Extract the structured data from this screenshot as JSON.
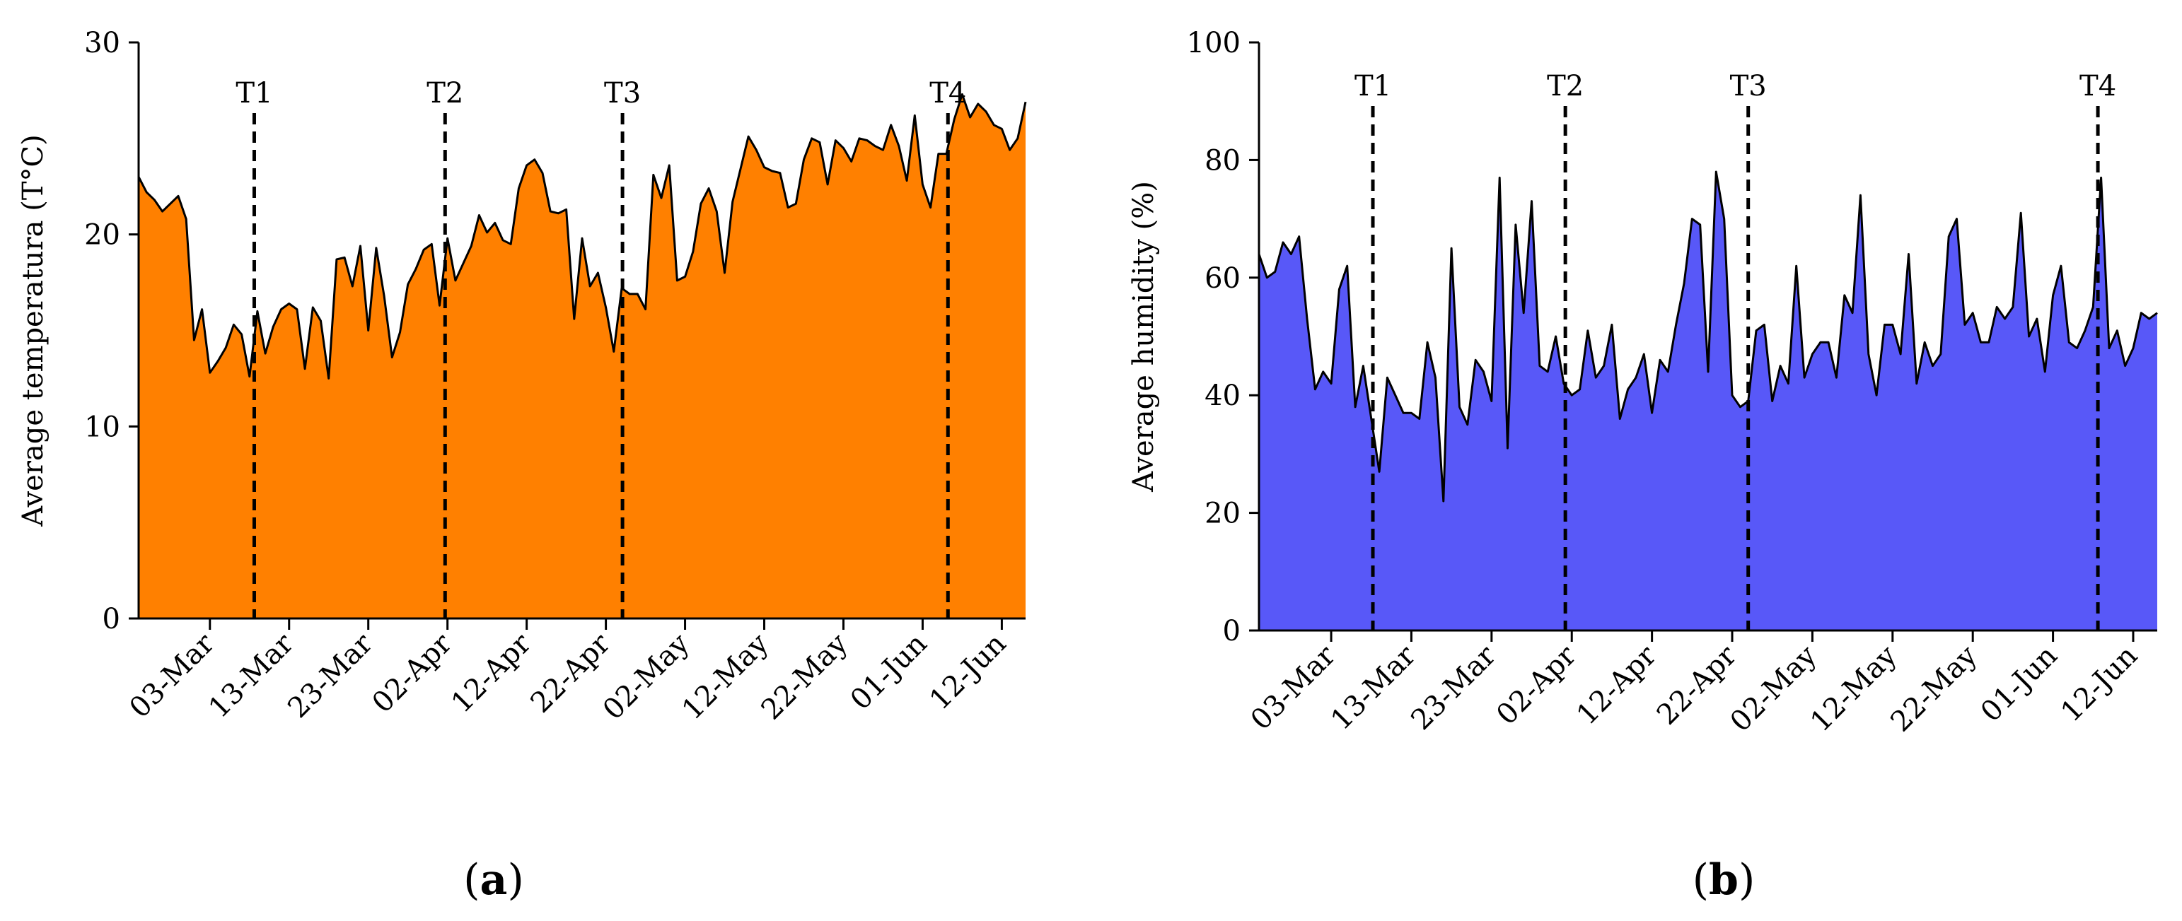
{
  "chart_data": [
    {
      "type": "area",
      "panel_label": "(a)",
      "panel_letter": "a",
      "title": "",
      "xlabel": "",
      "ylabel": "Average temperatura (T°C)",
      "ylim": [
        0,
        30
      ],
      "yticks": [
        0,
        10,
        20,
        30
      ],
      "xlim": [
        0,
        112
      ],
      "xticks": [
        {
          "label": "03-Mar",
          "day": 9
        },
        {
          "label": "13-Mar",
          "day": 19
        },
        {
          "label": "23-Mar",
          "day": 29
        },
        {
          "label": "02-Apr",
          "day": 39
        },
        {
          "label": "12-Apr",
          "day": 49
        },
        {
          "label": "22-Apr",
          "day": 59
        },
        {
          "label": "02-May",
          "day": 69
        },
        {
          "label": "12-May",
          "day": 79
        },
        {
          "label": "22-May",
          "day": 89
        },
        {
          "label": "01-Jun",
          "day": 99
        },
        {
          "label": "12-Jun",
          "day": 109
        }
      ],
      "markers": [
        {
          "label": "T1",
          "day": 14.6
        },
        {
          "label": "T2",
          "day": 38.7
        },
        {
          "label": "T3",
          "day": 61.1
        },
        {
          "label": "T4",
          "day": 102.2
        }
      ],
      "fill_color": "#ff8000",
      "line_color": "#000000",
      "series": [
        {
          "name": "Average temperature",
          "x": [
            0,
            1,
            2,
            3,
            4,
            5,
            6,
            7,
            8,
            9,
            10,
            11,
            12,
            13,
            14,
            15,
            16,
            17,
            18,
            19,
            20,
            21,
            22,
            23,
            24,
            25,
            26,
            27,
            28,
            29,
            30,
            31,
            32,
            33,
            34,
            35,
            36,
            37,
            38,
            39,
            40,
            41,
            42,
            43,
            44,
            45,
            46,
            47,
            48,
            49,
            50,
            51,
            52,
            53,
            54,
            55,
            56,
            57,
            58,
            59,
            60,
            61,
            62,
            63,
            64,
            65,
            66,
            67,
            68,
            69,
            70,
            71,
            72,
            73,
            74,
            75,
            76,
            77,
            78,
            79,
            80,
            81,
            82,
            83,
            84,
            85,
            86,
            87,
            88,
            89,
            90,
            91,
            92,
            93,
            94,
            95,
            96,
            97,
            98,
            99,
            100,
            101,
            102,
            103,
            104,
            105,
            106,
            107,
            108,
            109,
            110,
            111,
            112
          ],
          "values": [
            23.0,
            22.2,
            21.8,
            21.2,
            21.6,
            22.0,
            20.8,
            14.5,
            16.1,
            12.8,
            13.4,
            14.1,
            15.3,
            14.8,
            12.6,
            16.0,
            13.8,
            15.2,
            16.1,
            16.4,
            16.1,
            13.0,
            16.2,
            15.5,
            12.5,
            18.7,
            18.8,
            17.3,
            19.4,
            15.0,
            19.3,
            16.8,
            13.6,
            14.9,
            17.4,
            18.2,
            19.2,
            19.5,
            16.3,
            19.8,
            17.6,
            18.5,
            19.4,
            21.0,
            20.1,
            20.6,
            19.7,
            19.5,
            22.4,
            23.6,
            23.9,
            23.2,
            21.2,
            21.1,
            21.3,
            15.6,
            19.8,
            17.3,
            18.0,
            16.2,
            13.9,
            17.2,
            16.9,
            16.9,
            16.1,
            23.1,
            21.9,
            23.6,
            17.6,
            17.8,
            19.1,
            21.6,
            22.4,
            21.2,
            18.0,
            21.7,
            23.4,
            25.1,
            24.4,
            23.5,
            23.3,
            23.2,
            21.4,
            21.6,
            23.9,
            25.0,
            24.8,
            22.6,
            24.9,
            24.5,
            23.8,
            25.0,
            24.9,
            24.6,
            24.4,
            25.7,
            24.6,
            22.8,
            26.2,
            22.6,
            21.4,
            24.2,
            24.2,
            26.0,
            27.3,
            26.1,
            26.8,
            26.4,
            25.7,
            25.5,
            24.4,
            25.0,
            26.9
          ]
        }
      ]
    },
    {
      "type": "area",
      "panel_label": "(b)",
      "panel_letter": "b",
      "title": "",
      "xlabel": "",
      "ylabel": "Average humidity (%)",
      "ylim": [
        0,
        100
      ],
      "yticks": [
        0,
        20,
        40,
        60,
        80,
        100
      ],
      "xlim": [
        0,
        112
      ],
      "xticks": [
        {
          "label": "03-Mar",
          "day": 9
        },
        {
          "label": "13-Mar",
          "day": 19
        },
        {
          "label": "23-Mar",
          "day": 29
        },
        {
          "label": "02-Apr",
          "day": 39
        },
        {
          "label": "12-Apr",
          "day": 49
        },
        {
          "label": "22-Apr",
          "day": 59
        },
        {
          "label": "02-May",
          "day": 69
        },
        {
          "label": "12-May",
          "day": 79
        },
        {
          "label": "22-May",
          "day": 89
        },
        {
          "label": "01-Jun",
          "day": 99
        },
        {
          "label": "12-Jun",
          "day": 109
        }
      ],
      "markers": [
        {
          "label": "T1",
          "day": 14.2
        },
        {
          "label": "T2",
          "day": 38.2
        },
        {
          "label": "T3",
          "day": 61.0
        },
        {
          "label": "T4",
          "day": 104.6
        }
      ],
      "fill_color": "#5858f8",
      "line_color": "#000000",
      "series": [
        {
          "name": "Average humidity",
          "x": [
            0,
            1,
            2,
            3,
            4,
            5,
            6,
            7,
            8,
            9,
            10,
            11,
            12,
            13,
            14,
            15,
            16,
            17,
            18,
            19,
            20,
            21,
            22,
            23,
            24,
            25,
            26,
            27,
            28,
            29,
            30,
            31,
            32,
            33,
            34,
            35,
            36,
            37,
            38,
            39,
            40,
            41,
            42,
            43,
            44,
            45,
            46,
            47,
            48,
            49,
            50,
            51,
            52,
            53,
            54,
            55,
            56,
            57,
            58,
            59,
            60,
            61,
            62,
            63,
            64,
            65,
            66,
            67,
            68,
            69,
            70,
            71,
            72,
            73,
            74,
            75,
            76,
            77,
            78,
            79,
            80,
            81,
            82,
            83,
            84,
            85,
            86,
            87,
            88,
            89,
            90,
            91,
            92,
            93,
            94,
            95,
            96,
            97,
            98,
            99,
            100,
            101,
            102,
            103,
            104,
            105,
            106,
            107,
            108,
            109,
            110,
            111,
            112
          ],
          "values": [
            64,
            60,
            61,
            66,
            64,
            67,
            53,
            41,
            44,
            42,
            58,
            62,
            38,
            45,
            36,
            27,
            43,
            40,
            37,
            37,
            36,
            49,
            43,
            22,
            65,
            38,
            35,
            46,
            44,
            39,
            77,
            31,
            69,
            54,
            73,
            45,
            44,
            50,
            42,
            40,
            41,
            51,
            43,
            45,
            52,
            36,
            41,
            43,
            47,
            37,
            46,
            44,
            52,
            59,
            70,
            69,
            44,
            78,
            70,
            40,
            38,
            39,
            51,
            52,
            39,
            45,
            42,
            62,
            43,
            47,
            49,
            49,
            43,
            57,
            54,
            74,
            47,
            40,
            52,
            52,
            47,
            64,
            42,
            49,
            45,
            47,
            67,
            70,
            52,
            54,
            49,
            49,
            55,
            53,
            55,
            71,
            50,
            53,
            44,
            57,
            62,
            49,
            48,
            51,
            55,
            77,
            48,
            51,
            45,
            48,
            54,
            53,
            54
          ]
        }
      ]
    }
  ]
}
